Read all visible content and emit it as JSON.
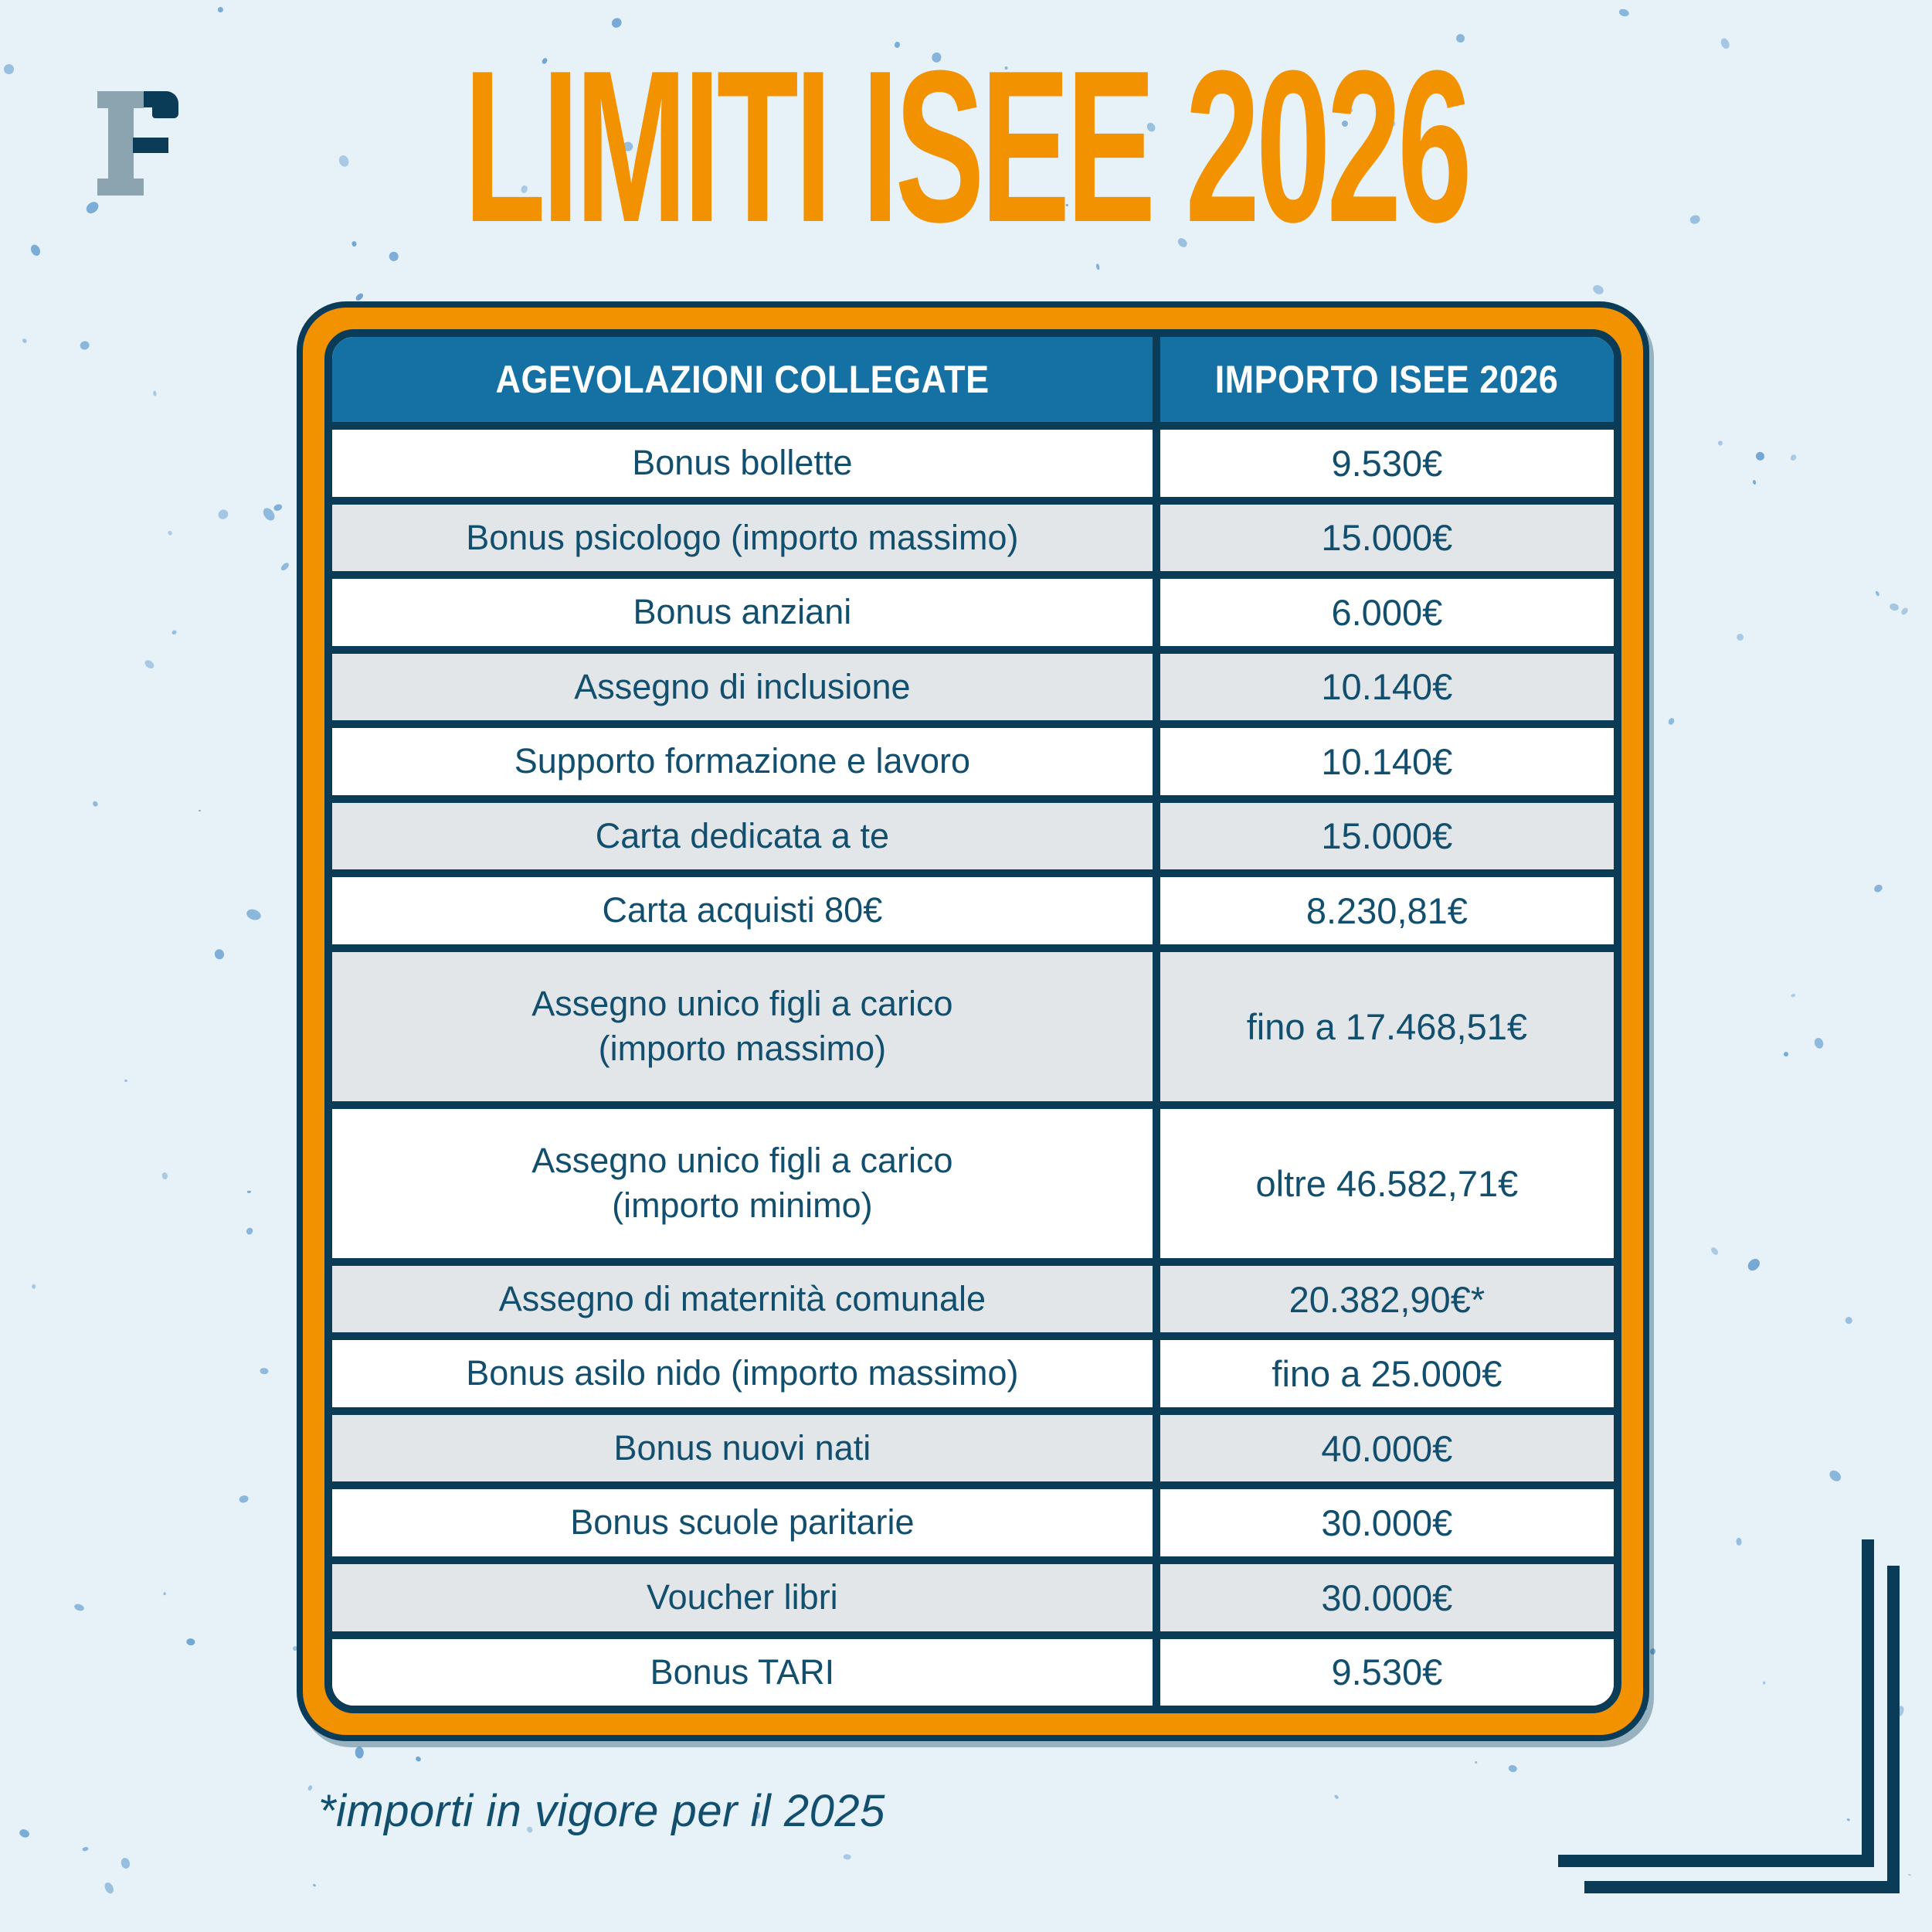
{
  "page": {
    "title": "LIMITI ISEE 2026",
    "footnote": "*importi in vigore per il 2025",
    "logo_letter": "F"
  },
  "table": {
    "headers": [
      "AGEVOLAZIONI COLLEGATE",
      "IMPORTO ISEE 2026"
    ],
    "rows": [
      {
        "label": "Bonus bollette",
        "value": "9.530€"
      },
      {
        "label": "Bonus psicologo (importo massimo)",
        "value": "15.000€"
      },
      {
        "label": "Bonus anziani",
        "value": "6.000€"
      },
      {
        "label": "Assegno di inclusione",
        "value": "10.140€"
      },
      {
        "label": "Supporto formazione e lavoro",
        "value": "10.140€"
      },
      {
        "label": "Carta dedicata a te",
        "value": "15.000€"
      },
      {
        "label": "Carta acquisti 80€",
        "value": "8.230,81€"
      },
      {
        "label": "Assegno unico figli a carico\n(importo massimo)",
        "value": "fino a 17.468,51€"
      },
      {
        "label": "Assegno unico figli a carico\n(importo minimo)",
        "value": "oltre 46.582,71€"
      },
      {
        "label": "Assegno di maternità comunale",
        "value": "20.382,90€*"
      },
      {
        "label": "Bonus asilo nido (importo massimo)",
        "value": "fino a 25.000€"
      },
      {
        "label": "Bonus nuovi nati",
        "value": "40.000€"
      },
      {
        "label": "Bonus scuole paritarie",
        "value": "30.000€"
      },
      {
        "label": "Voucher libri",
        "value": "30.000€"
      },
      {
        "label": "Bonus TARI",
        "value": "9.530€"
      }
    ]
  },
  "chart_data": {
    "type": "table",
    "title": "LIMITI ISEE 2026",
    "columns": [
      "AGEVOLAZIONI COLLEGATE",
      "IMPORTO ISEE 2026"
    ],
    "rows": [
      [
        "Bonus bollette",
        "9.530€"
      ],
      [
        "Bonus psicologo (importo massimo)",
        "15.000€"
      ],
      [
        "Bonus anziani",
        "6.000€"
      ],
      [
        "Assegno di inclusione",
        "10.140€"
      ],
      [
        "Supporto formazione e lavoro",
        "10.140€"
      ],
      [
        "Carta dedicata a te",
        "15.000€"
      ],
      [
        "Carta acquisti 80€",
        "8.230,81€"
      ],
      [
        "Assegno unico figli a carico (importo massimo)",
        "fino a 17.468,51€"
      ],
      [
        "Assegno unico figli a carico (importo minimo)",
        "oltre 46.582,71€"
      ],
      [
        "Assegno di maternità comunale",
        "20.382,90€*"
      ],
      [
        "Bonus asilo nido (importo massimo)",
        "fino a 25.000€"
      ],
      [
        "Bonus nuovi nati",
        "40.000€"
      ],
      [
        "Bonus scuole paritarie",
        "30.000€"
      ],
      [
        "Voucher libri",
        "30.000€"
      ],
      [
        "Bonus TARI",
        "9.530€"
      ]
    ],
    "footnote": "*importi in vigore per il 2025"
  },
  "colors": {
    "background": "#e6f1f8",
    "speckle": "#69a1d1",
    "orange": "#f29200",
    "navy": "#0a3c58",
    "header_blue": "#1571a3",
    "row_white": "#ffffff",
    "row_gray": "#e2e6e9",
    "text_navy": "#124f6e",
    "logo_gray": "#8ca3b0",
    "title_orange": "#f29200"
  }
}
